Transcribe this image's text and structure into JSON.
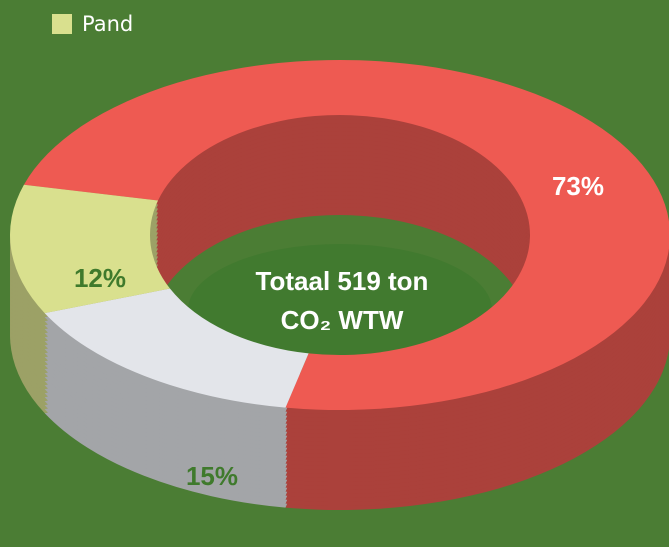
{
  "chart_data": {
    "type": "pie",
    "donut": true,
    "categories": [
      null,
      null,
      "Pand"
    ],
    "values": [
      73,
      15,
      12
    ],
    "value_labels": [
      "73%",
      "15%",
      "12%"
    ],
    "colors": [
      "#ee5a52",
      "#e3e5ea",
      "#d9e08e"
    ],
    "label_colors": [
      "#ffffff",
      "#3f7a2c",
      "#3f7a2c"
    ],
    "center_text": [
      "Totaal 519 ton",
      "CO₂ WTW"
    ]
  }
}
